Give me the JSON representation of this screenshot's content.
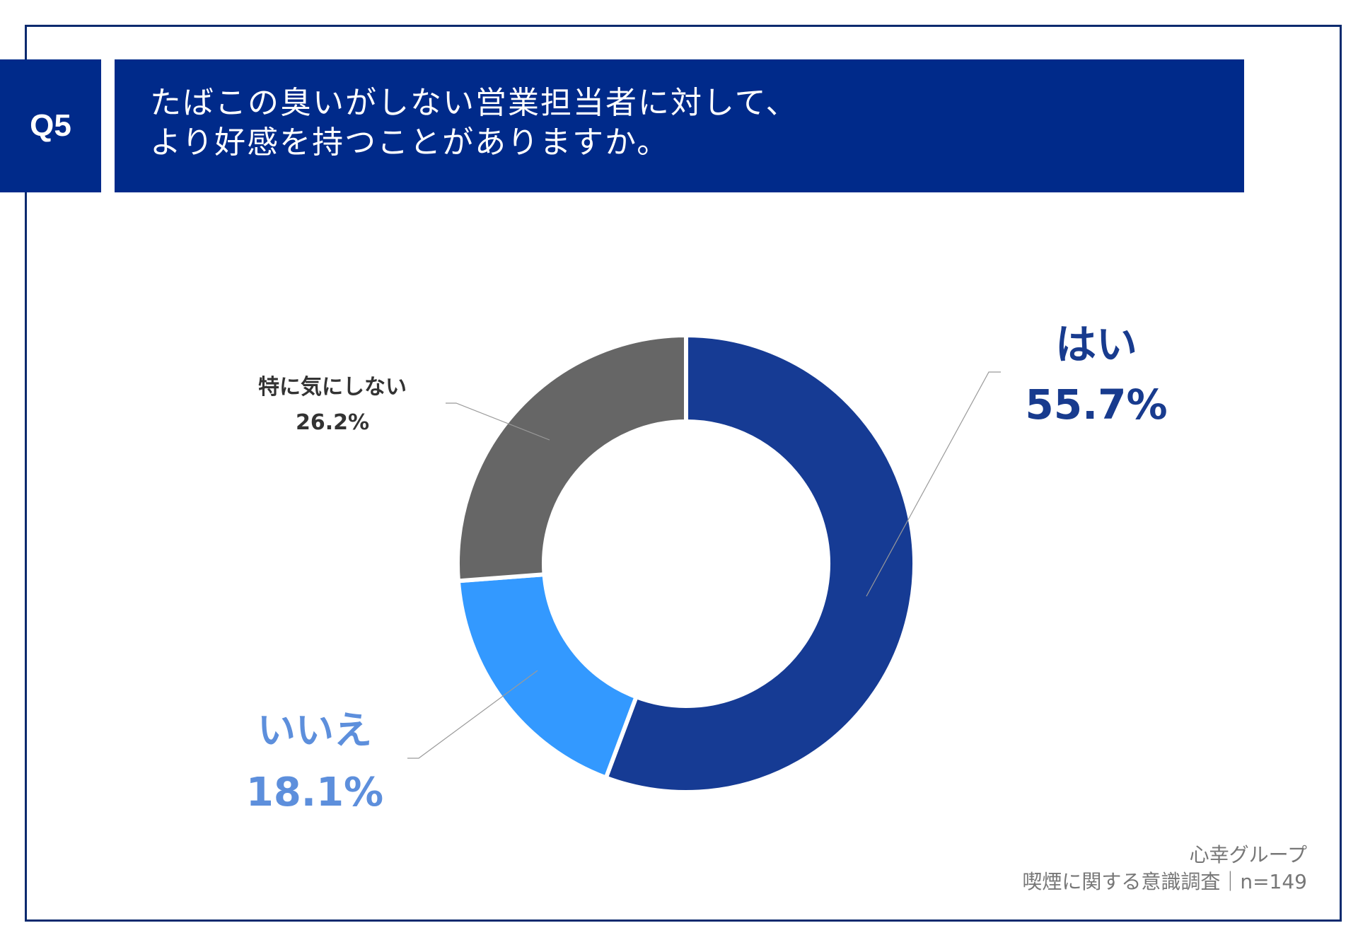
{
  "header": {
    "badge": "Q5",
    "title_line1": "たばこの臭いがしない営業担当者に対して、",
    "title_line2": "より好感を持つことがありますか。"
  },
  "chart_data": {
    "type": "pie",
    "variant": "donut",
    "title": "たばこの臭いがしない営業担当者に対して、より好感を持つことがありますか。",
    "categories": [
      "はい",
      "いいえ",
      "特に気にしない"
    ],
    "values": [
      55.7,
      18.1,
      26.2
    ],
    "value_labels": [
      "55.7%",
      "18.1%",
      "26.2%"
    ],
    "colors": [
      "#163b94",
      "#3399ff",
      "#666666"
    ]
  },
  "footer": {
    "source_line1": "心幸グループ",
    "source_line2": "喫煙に関する意識調査｜n=149"
  }
}
